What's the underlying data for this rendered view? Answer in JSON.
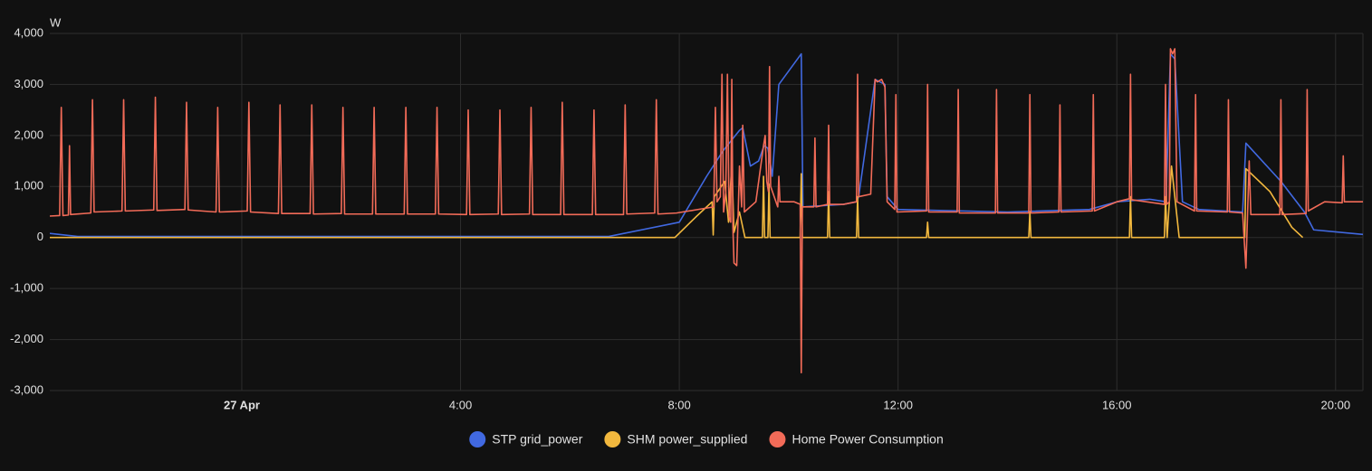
{
  "chart_data": {
    "type": "line",
    "ylabel": "W",
    "xlim": [
      -3.51,
      20.5
    ],
    "xticks": [
      {
        "value": 0,
        "label": "27 Apr"
      },
      {
        "value": 4,
        "label": "4:00"
      },
      {
        "value": 8,
        "label": "8:00"
      },
      {
        "value": 12,
        "label": "12:00"
      },
      {
        "value": 16,
        "label": "16:00"
      },
      {
        "value": 20,
        "label": "20:00"
      }
    ],
    "ylim": [
      -3000,
      4000
    ],
    "yticks": [
      {
        "value": -3000,
        "label": "-3,000"
      },
      {
        "value": -2000,
        "label": "-2,000"
      },
      {
        "value": -1000,
        "label": "-1,000"
      },
      0,
      {
        "value": 1000,
        "label": "1,000"
      },
      {
        "value": 2000,
        "label": "2,000"
      },
      {
        "value": 3000,
        "label": "3,000"
      },
      {
        "value": 4000,
        "label": "4,000"
      }
    ],
    "grid": true,
    "legend": "bottom",
    "series": [
      {
        "name": "STP grid_power",
        "color": "#4169e1",
        "x": [
          -3.51,
          -3.0,
          6.71,
          8.0,
          8.5,
          8.8,
          9.1,
          9.16,
          9.3,
          9.45,
          9.55,
          9.62,
          9.7,
          9.82,
          10.23,
          10.26,
          11.0,
          11.24,
          11.26,
          11.28,
          11.58,
          11.76,
          11.8,
          12.0,
          14.0,
          15.5,
          16.0,
          16.6,
          16.9,
          16.98,
          17.06,
          17.2,
          17.5,
          18.3,
          18.36,
          19.0,
          19.43,
          19.6,
          20.5
        ],
        "values": [
          80,
          20,
          20,
          300,
          1200,
          1700,
          2100,
          2150,
          1400,
          1500,
          1800,
          1750,
          1200,
          3000,
          3600,
          600,
          650,
          700,
          750,
          800,
          3100,
          3000,
          800,
          550,
          500,
          550,
          700,
          750,
          700,
          3600,
          3500,
          700,
          550,
          500,
          1850,
          1100,
          500,
          150,
          60
        ]
      },
      {
        "name": "SHM power_supplied",
        "color": "#f2b83e",
        "x": [
          -3.51,
          7.92,
          8.3,
          8.6,
          8.62,
          8.64,
          8.83,
          8.9,
          8.96,
          9.0,
          9.1,
          9.2,
          9.52,
          9.54,
          9.56,
          9.62,
          9.64,
          9.66,
          10.21,
          10.23,
          10.25,
          10.71,
          10.73,
          10.75,
          11.24,
          11.26,
          11.28,
          12.52,
          12.54,
          12.56,
          14.39,
          14.41,
          14.43,
          16.23,
          16.25,
          16.27,
          16.87,
          16.89,
          16.92,
          17.0,
          17.08,
          17.14,
          18.34,
          18.36,
          18.8,
          19.2,
          19.4
        ],
        "values": [
          0,
          0,
          400,
          700,
          50,
          800,
          1100,
          300,
          1450,
          100,
          500,
          0,
          0,
          1200,
          0,
          0,
          1050,
          0,
          0,
          1250,
          0,
          0,
          900,
          0,
          0,
          800,
          0,
          0,
          300,
          0,
          0,
          500,
          0,
          0,
          800,
          0,
          0,
          800,
          0,
          1400,
          600,
          0,
          0,
          1350,
          900,
          200,
          0
        ]
      },
      {
        "name": "Home Power Consumption",
        "color": "#f26b58",
        "x": [
          -3.51,
          -3.33,
          -3.3,
          -3.27,
          -3.17,
          -3.15,
          -3.13,
          -2.76,
          -2.73,
          -2.7,
          -2.19,
          -2.16,
          -2.13,
          -1.61,
          -1.58,
          -1.55,
          -1.04,
          -1.01,
          -0.98,
          -0.47,
          -0.44,
          -0.41,
          0.1,
          0.13,
          0.16,
          0.67,
          0.7,
          0.73,
          1.25,
          1.28,
          1.31,
          1.82,
          1.85,
          1.88,
          2.39,
          2.42,
          2.45,
          2.97,
          3.0,
          3.03,
          3.54,
          3.57,
          3.6,
          4.11,
          4.14,
          4.17,
          4.69,
          4.72,
          4.75,
          5.26,
          5.29,
          5.32,
          5.83,
          5.86,
          5.89,
          6.41,
          6.44,
          6.47,
          6.98,
          7.01,
          7.04,
          7.55,
          7.58,
          7.61,
          7.95,
          8.4,
          8.63,
          8.66,
          8.69,
          8.75,
          8.78,
          8.81,
          8.85,
          8.88,
          8.91,
          8.94,
          8.96,
          8.98,
          9.0,
          9.05,
          9.1,
          9.14,
          9.16,
          9.19,
          9.4,
          9.54,
          9.57,
          9.6,
          9.63,
          9.65,
          9.67,
          9.8,
          9.82,
          9.84,
          10.1,
          10.21,
          10.23,
          10.25,
          10.46,
          10.48,
          10.5,
          10.71,
          10.73,
          10.75,
          11.0,
          11.24,
          11.26,
          11.28,
          11.5,
          11.58,
          11.62,
          11.7,
          11.76,
          11.8,
          11.94,
          11.96,
          11.98,
          12.52,
          12.54,
          12.56,
          13.08,
          13.1,
          13.12,
          13.78,
          13.8,
          13.82,
          14.39,
          14.41,
          14.43,
          14.94,
          14.96,
          14.98,
          15.55,
          15.57,
          15.59,
          16.0,
          16.23,
          16.25,
          16.27,
          16.87,
          16.89,
          16.91,
          16.96,
          16.98,
          17.02,
          17.06,
          17.1,
          17.42,
          17.44,
          17.46,
          18.02,
          18.04,
          18.06,
          18.3,
          18.36,
          18.42,
          18.45,
          18.98,
          19.0,
          19.02,
          19.46,
          19.48,
          19.5,
          19.8,
          20.12,
          20.14,
          20.16,
          20.5
        ],
        "values": [
          420,
          430,
          2550,
          430,
          440,
          1800,
          450,
          480,
          2700,
          500,
          520,
          2700,
          520,
          540,
          2750,
          530,
          550,
          2650,
          540,
          500,
          2550,
          500,
          520,
          2650,
          500,
          470,
          2600,
          470,
          470,
          2600,
          460,
          470,
          2550,
          460,
          460,
          2550,
          460,
          460,
          2550,
          460,
          460,
          2550,
          460,
          450,
          2500,
          450,
          460,
          2500,
          450,
          460,
          2550,
          450,
          450,
          2650,
          450,
          450,
          2500,
          450,
          450,
          2600,
          460,
          480,
          2700,
          460,
          480,
          560,
          600,
          2550,
          700,
          800,
          3200,
          500,
          900,
          3200,
          400,
          300,
          3100,
          200,
          -500,
          -550,
          1400,
          600,
          2200,
          500,
          700,
          1800,
          2000,
          1100,
          900,
          3350,
          1000,
          600,
          1200,
          700,
          700,
          650,
          -2650,
          600,
          600,
          1950,
          600,
          650,
          2200,
          650,
          650,
          700,
          3200,
          800,
          850,
          3100,
          3050,
          3100,
          2950,
          700,
          550,
          2800,
          500,
          520,
          3000,
          500,
          500,
          2900,
          480,
          480,
          2900,
          480,
          480,
          2800,
          480,
          500,
          2600,
          500,
          520,
          2800,
          520,
          700,
          760,
          3200,
          740,
          650,
          3000,
          650,
          700,
          3700,
          3600,
          3700,
          700,
          520,
          2800,
          520,
          500,
          2700,
          500,
          480,
          -600,
          1500,
          450,
          450,
          2700,
          450,
          470,
          2900,
          520,
          700,
          680,
          1600,
          700,
          700
        ]
      }
    ]
  }
}
